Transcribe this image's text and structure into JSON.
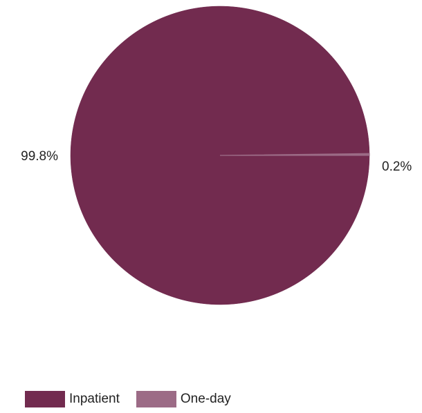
{
  "chart_data": {
    "type": "pie",
    "categories": [
      "Inpatient",
      "One-day"
    ],
    "values": [
      99.8,
      0.2
    ],
    "data_labels": [
      "99.8%",
      "0.2%"
    ],
    "colors": [
      "#722b4f",
      "#9c6b86"
    ],
    "legend": {
      "position": "bottom-left",
      "entries": [
        "Inpatient",
        "One-day"
      ]
    }
  }
}
